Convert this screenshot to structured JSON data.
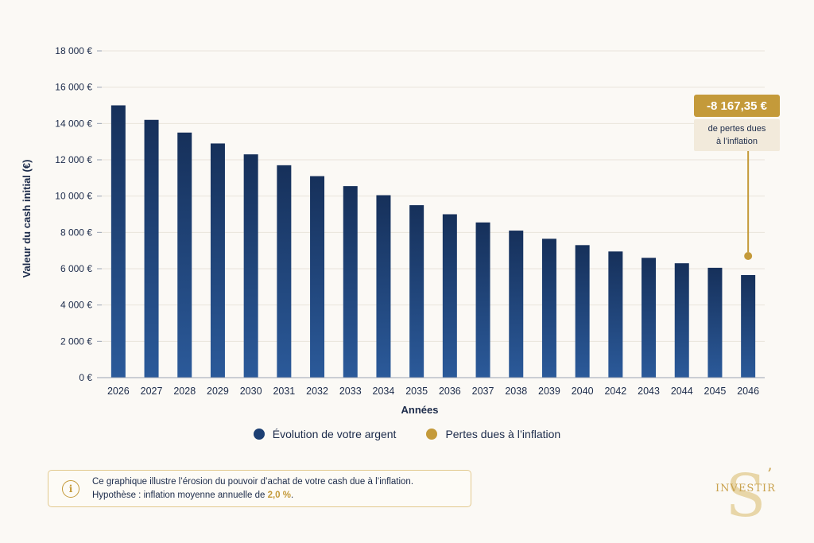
{
  "chart_data": {
    "type": "bar",
    "title": "",
    "xlabel": "Années",
    "ylabel": "Valeur du cash initial (€)",
    "ylim": [
      0,
      18000
    ],
    "yticks": [
      "0 €",
      "2 000 €",
      "4 000 €",
      "6 000 €",
      "8 000 €",
      "10 000 €",
      "12 000 €",
      "14 000 €",
      "16 000 €",
      "18 000 €"
    ],
    "categories": [
      "2026",
      "2027",
      "2028",
      "2029",
      "2030",
      "2031",
      "2032",
      "2033",
      "2034",
      "2035",
      "2036",
      "2037",
      "2038",
      "2039",
      "2040",
      "2042",
      "2043",
      "2044",
      "2045",
      "2046"
    ],
    "series": [
      {
        "name": "Évolution de votre argent",
        "color": "#1c3f73",
        "values": [
          15000,
          14200,
          13500,
          12900,
          12300,
          11700,
          11100,
          10550,
          10050,
          9500,
          9000,
          8550,
          8100,
          7650,
          7300,
          6950,
          6600,
          6300,
          6050,
          5650
        ]
      },
      {
        "name": "Pertes dues à l’inflation",
        "color": "#c49a3a",
        "points": [
          {
            "x": "2046",
            "y": 6700
          }
        ]
      }
    ],
    "grid": true,
    "legend_position": "bottom"
  },
  "callout": {
    "value": "-8 167,35 €",
    "text_line1": "de pertes dues",
    "text_line2": "à l’inflation"
  },
  "info": {
    "icon": "info-icon",
    "line1": "Ce graphique illustre l’érosion du pouvoir d’achat de votre cash due à l’inflation.",
    "line2_prefix": "Hypothèse : inflation moyenne annuelle de ",
    "line2_rate": "2,0 %",
    "line2_suffix": "."
  },
  "logo": {
    "letter": "S",
    "word": "INVESTIR"
  }
}
